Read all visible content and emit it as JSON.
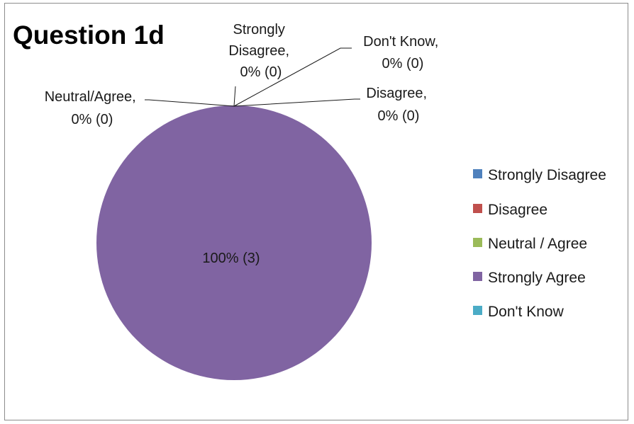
{
  "chart_data": {
    "type": "pie",
    "title": "Question 1d",
    "categories": [
      "Strongly Disagree",
      "Disagree",
      "Neutral / Agree",
      "Strongly Agree",
      "Don't Know"
    ],
    "values": [
      0,
      0,
      0,
      3,
      0
    ],
    "percentages": [
      0,
      0,
      0,
      100,
      0
    ],
    "colors": [
      "#4f81bd",
      "#c0504d",
      "#9bbb59",
      "#8064a2",
      "#4bacc6"
    ],
    "legend_position": "right",
    "data_labels": {
      "strongly_disagree": [
        "Strongly",
        "Disagree,",
        "0% (0)"
      ],
      "dont_know": [
        "Don't Know,",
        "0% (0)"
      ],
      "neutral_agree": [
        "Neutral/Agree,",
        "0% (0)"
      ],
      "disagree": [
        "Disagree,",
        "0% (0)"
      ],
      "strongly_agree": "100% (3)"
    }
  }
}
